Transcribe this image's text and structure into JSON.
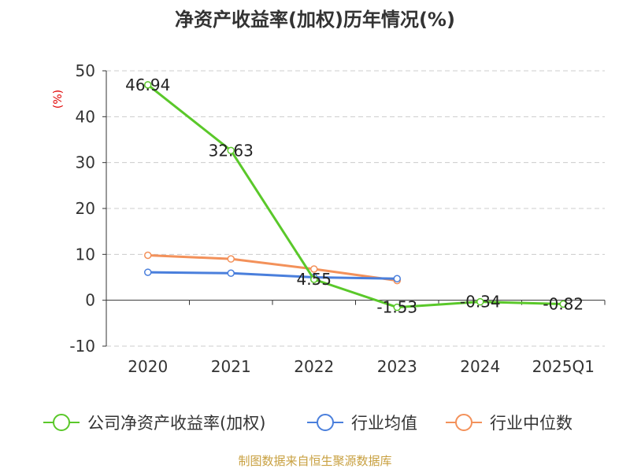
{
  "chart_data": {
    "type": "line",
    "title": "净资产收益率(加权)历年情况(%)",
    "ylabel": "(%)",
    "xlabel": "",
    "categories": [
      "2020",
      "2021",
      "2022",
      "2023",
      "2024",
      "2025Q1"
    ],
    "ylim": [
      -10,
      50
    ],
    "yticks": [
      50,
      40,
      30,
      20,
      10,
      0,
      -10
    ],
    "grid": true,
    "legend_position": "bottom",
    "series": [
      {
        "name": "公司净资产收益率(加权)",
        "color": "#5ac82a",
        "values": [
          46.94,
          32.63,
          4.55,
          -1.53,
          -0.34,
          -0.82
        ],
        "labels": [
          "46.94",
          "32.63",
          "4.55",
          "-1.53",
          "-0.34",
          "-0.82"
        ]
      },
      {
        "name": "行业均值",
        "color": "#4a7fdc",
        "values": [
          6.1,
          5.9,
          5.0,
          4.7,
          null,
          null
        ]
      },
      {
        "name": "行业中位数",
        "color": "#f3915a",
        "values": [
          9.8,
          9.0,
          6.8,
          4.3,
          null,
          null
        ]
      }
    ]
  },
  "source": "制图数据来自恒生聚源数据库"
}
